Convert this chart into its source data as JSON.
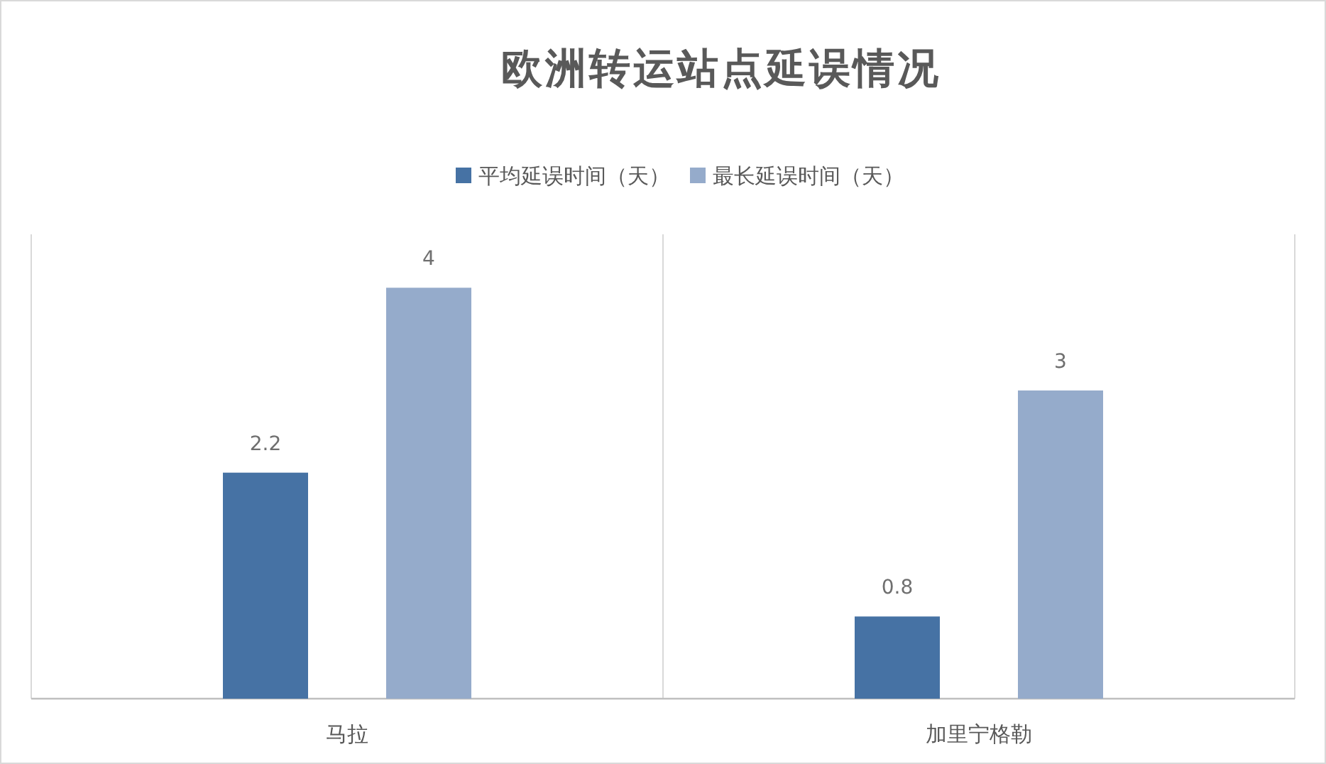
{
  "chart_data": {
    "type": "bar",
    "title": "欧洲转运站点延误情况",
    "categories": [
      "马拉",
      "加里宁格勒"
    ],
    "series": [
      {
        "name": "平均延误时间（天）",
        "color": "#4672a4",
        "values": [
          2.2,
          0.8
        ]
      },
      {
        "name": "最长延误时间（天）",
        "color": "#95abcb",
        "values": [
          4,
          3
        ]
      }
    ],
    "data_labels": true,
    "legend": "top",
    "grid": "x"
  }
}
